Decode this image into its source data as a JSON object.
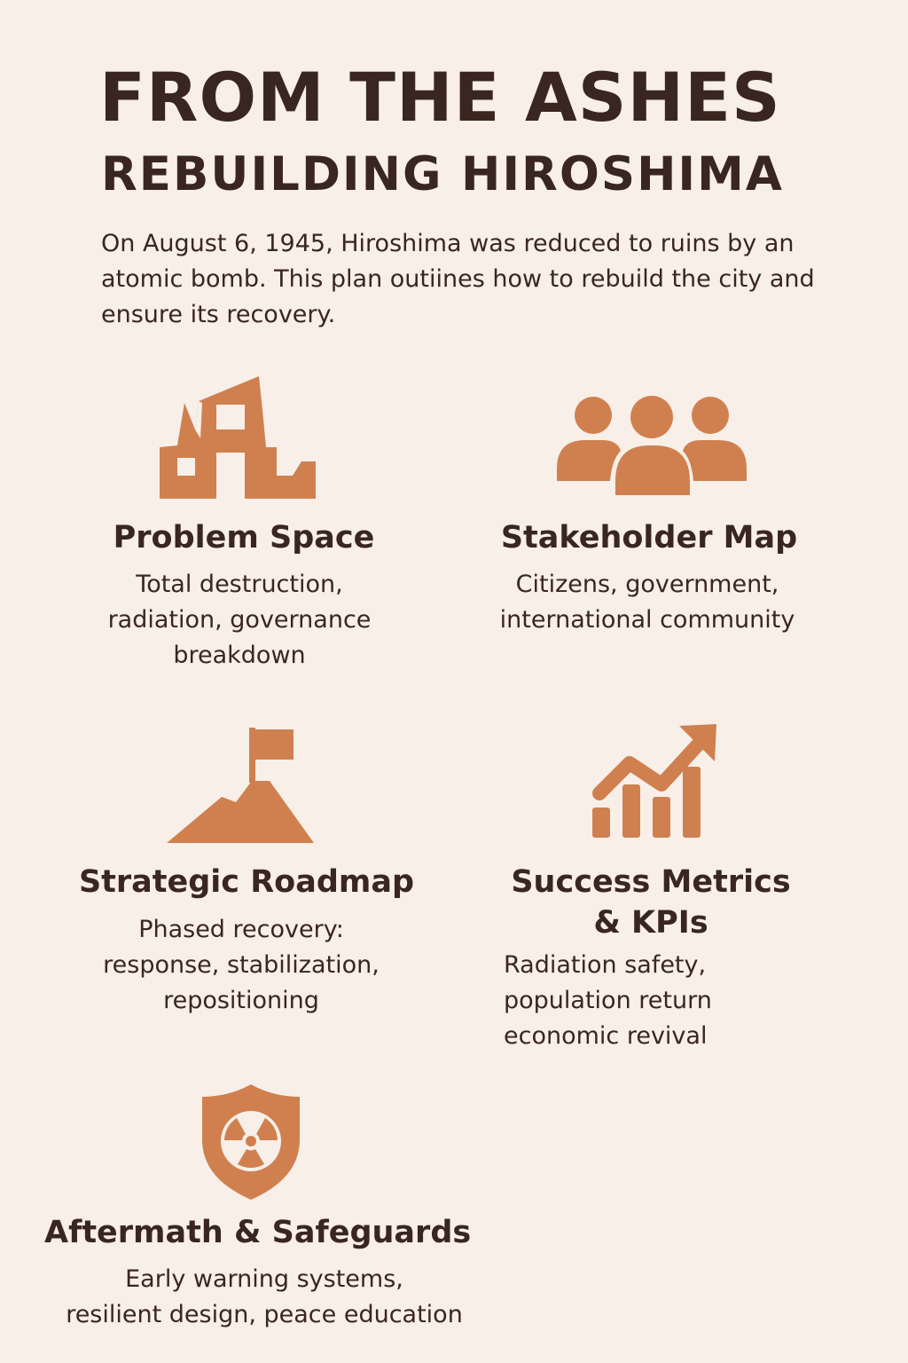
{
  "header": {
    "title": "FROM THE ASHES",
    "subtitle": "REBUILDING HIROSHIMA",
    "intro": "On August 6, 1945, Hiroshima was reduced to ruins by an atomic bomb. This plan outiines how to rebuild the city and ensure its recovery."
  },
  "accent_color": "#d0804f",
  "text_color": "#3a2620",
  "background_color": "#f8efe8",
  "sections": {
    "problem": {
      "icon": "ruined-building-icon",
      "title": "Problem Space",
      "text_lines": [
        "Total destruction,",
        "radiation, governance",
        "breakdown"
      ]
    },
    "stakeholder": {
      "icon": "people-group-icon",
      "title": "Stakeholder Map",
      "text_lines": [
        "Citizens, government,",
        "international community"
      ]
    },
    "roadmap": {
      "icon": "mountain-flag-icon",
      "title": "Strategic Roadmap",
      "text_lines": [
        "Phased recovery:",
        "response, stabilization,",
        "repositioning"
      ]
    },
    "metrics": {
      "icon": "growth-chart-icon",
      "title_lines": [
        "Success Metrics",
        "& KPIs"
      ],
      "text_lines": [
        "Radiation safety,",
        "population return",
        "economic revival"
      ]
    },
    "safeguards": {
      "icon": "radiation-shield-icon",
      "title": "Aftermath & Safeguards",
      "text_lines": [
        "Early warning systems,",
        "resilient design, peace education"
      ]
    }
  }
}
